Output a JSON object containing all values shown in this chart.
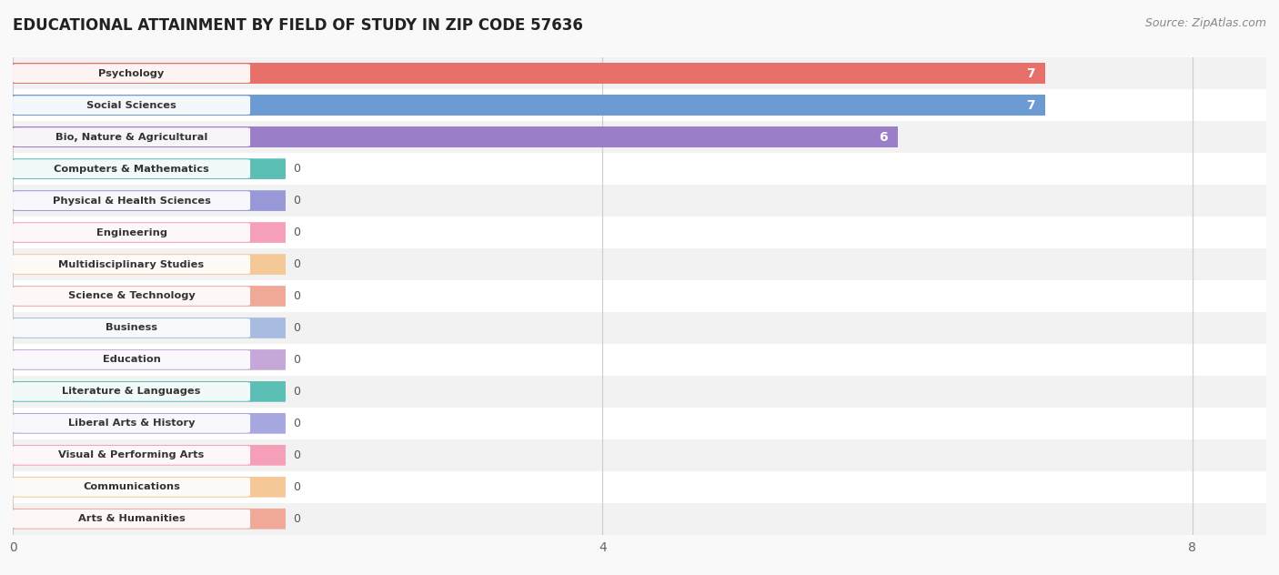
{
  "title": "EDUCATIONAL ATTAINMENT BY FIELD OF STUDY IN ZIP CODE 57636",
  "source": "Source: ZipAtlas.com",
  "categories": [
    "Psychology",
    "Social Sciences",
    "Bio, Nature & Agricultural",
    "Computers & Mathematics",
    "Physical & Health Sciences",
    "Engineering",
    "Multidisciplinary Studies",
    "Science & Technology",
    "Business",
    "Education",
    "Literature & Languages",
    "Liberal Arts & History",
    "Visual & Performing Arts",
    "Communications",
    "Arts & Humanities"
  ],
  "values": [
    7,
    7,
    6,
    0,
    0,
    0,
    0,
    0,
    0,
    0,
    0,
    0,
    0,
    0,
    0
  ],
  "bar_colors": [
    "#E8706A",
    "#6B9BD2",
    "#9B7EC8",
    "#5BBFB5",
    "#9898D8",
    "#F5A0B8",
    "#F5C898",
    "#F0A898",
    "#A8BBE0",
    "#C5A8D8",
    "#5BBFB5",
    "#A8A8E0",
    "#F5A0B8",
    "#F5C898",
    "#F0A898"
  ],
  "xlim": [
    0,
    8.5
  ],
  "xticks": [
    0,
    4,
    8
  ],
  "background_color": "#f9f9f9",
  "row_bg_even": "#f2f2f2",
  "row_bg_odd": "#ffffff",
  "title_fontsize": 12,
  "source_fontsize": 9,
  "zero_bar_extent": 1.85
}
